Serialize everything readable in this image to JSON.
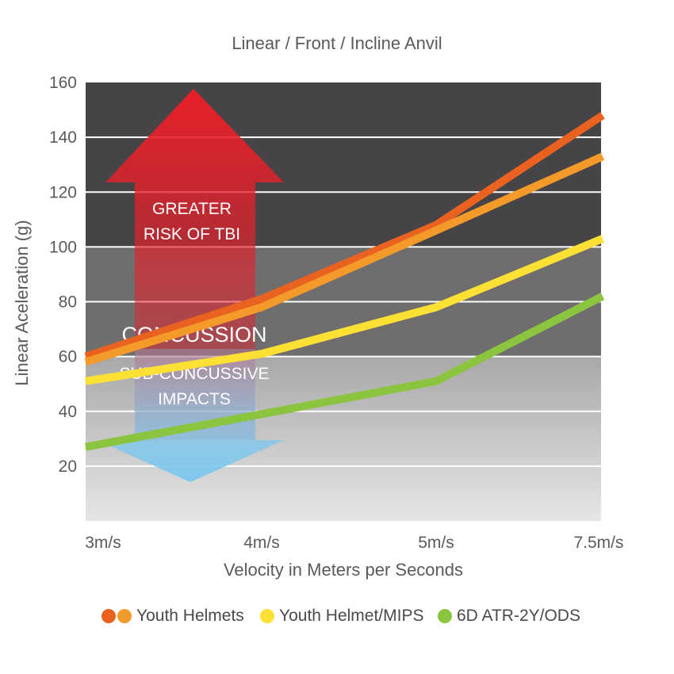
{
  "chart_data": {
    "type": "line",
    "title": "Linear / Front / Incline Anvil",
    "xlabel": "Velocity in Meters per Seconds",
    "ylabel": "Linear Aceleration (g)",
    "categories": [
      "3m/s",
      "4m/s",
      "5m/s",
      "7.5m/s"
    ],
    "ylim": [
      0,
      160
    ],
    "yticks": [
      20,
      40,
      60,
      80,
      100,
      120,
      140,
      160
    ],
    "grid": true,
    "legend_position": "bottom",
    "series": [
      {
        "name": "Youth Helmets",
        "values": [
          60,
          81,
          108,
          148
        ],
        "color": "#ea6220"
      },
      {
        "name": "Youth Helmets",
        "values": [
          58,
          78,
          106,
          133
        ],
        "color": "#f39a2a"
      },
      {
        "name": "Youth Helmet/MIPS",
        "values": [
          51,
          61,
          78,
          103
        ],
        "color": "#fde034"
      },
      {
        "name": "6D ATR-2Y/ODS",
        "values": [
          27,
          39,
          51,
          82
        ],
        "color": "#8bc53f"
      }
    ],
    "zones": [
      {
        "label_lines": [
          "GREATER",
          "RISK OF TBI"
        ],
        "range": [
          100,
          160
        ],
        "color": "#464446"
      },
      {
        "label_lines": [
          "CONCUSSION"
        ],
        "range": [
          60,
          100
        ],
        "color": "#6f6d6e"
      },
      {
        "label_lines": [
          "SUB-CONCUSSIVE",
          "IMPACTS"
        ],
        "range": [
          0,
          60
        ],
        "color": "#c2c2c2"
      }
    ]
  },
  "legend": {
    "items": [
      {
        "label": "Youth Helmets",
        "colors": [
          "#ea6220",
          "#f39a2a"
        ]
      },
      {
        "label": "Youth Helmet/MIPS",
        "colors": [
          "#fde034"
        ]
      },
      {
        "label": "6D ATR-2Y/ODS",
        "colors": [
          "#8bc53f"
        ]
      }
    ]
  }
}
